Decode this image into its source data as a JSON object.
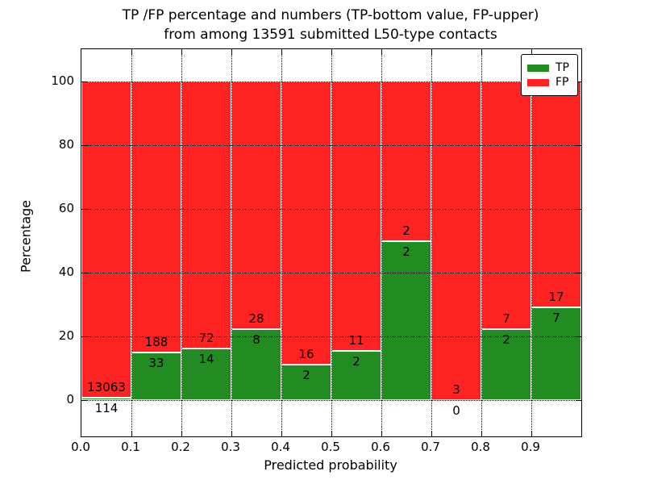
{
  "figure": {
    "title_line1": "TP /FP percentage and numbers (TP-bottom value, FP-upper)",
    "title_line2": "from among 13591 submitted L50-type contacts"
  },
  "chart_data": {
    "type": "bar",
    "stacked": true,
    "normalized": "each bar scaled so TP+FP = 100%",
    "title": "TP /FP percentage and numbers (TP-bottom value, FP-upper) from among 13591 submitted L50-type contacts",
    "xlabel": "Predicted probability",
    "ylabel": "Percentage",
    "total_contacts": 13591,
    "bin_edges": [
      0.0,
      0.1,
      0.2,
      0.3,
      0.4,
      0.5,
      0.6,
      0.7,
      0.8,
      0.9,
      1.0
    ],
    "categories": [
      "0.0-0.1",
      "0.1-0.2",
      "0.2-0.3",
      "0.3-0.4",
      "0.4-0.5",
      "0.5-0.6",
      "0.6-0.7",
      "0.7-0.8",
      "0.8-0.9",
      "0.9-1.0"
    ],
    "series": [
      {
        "name": "TP",
        "color": "#228B22",
        "counts": [
          114,
          33,
          14,
          8,
          2,
          2,
          2,
          0,
          2,
          7
        ]
      },
      {
        "name": "FP",
        "color": "#FF2222",
        "counts": [
          13063,
          188,
          72,
          28,
          16,
          11,
          2,
          3,
          7,
          17
        ]
      }
    ],
    "xticks": [
      "0.0",
      "0.1",
      "0.2",
      "0.3",
      "0.4",
      "0.5",
      "0.6",
      "0.7",
      "0.8",
      "0.9"
    ],
    "yticks": [
      0,
      20,
      40,
      60,
      80,
      100
    ],
    "xlim": [
      0.0,
      1.0
    ],
    "ylim": [
      -11.4,
      110.2
    ],
    "grid": "dotted black, both axes",
    "bar_edge_color": "#ffffff",
    "legend": {
      "position": "upper right",
      "entries": [
        {
          "label": "TP",
          "color": "#228B22"
        },
        {
          "label": "FP",
          "color": "#FF2222"
        }
      ]
    }
  }
}
